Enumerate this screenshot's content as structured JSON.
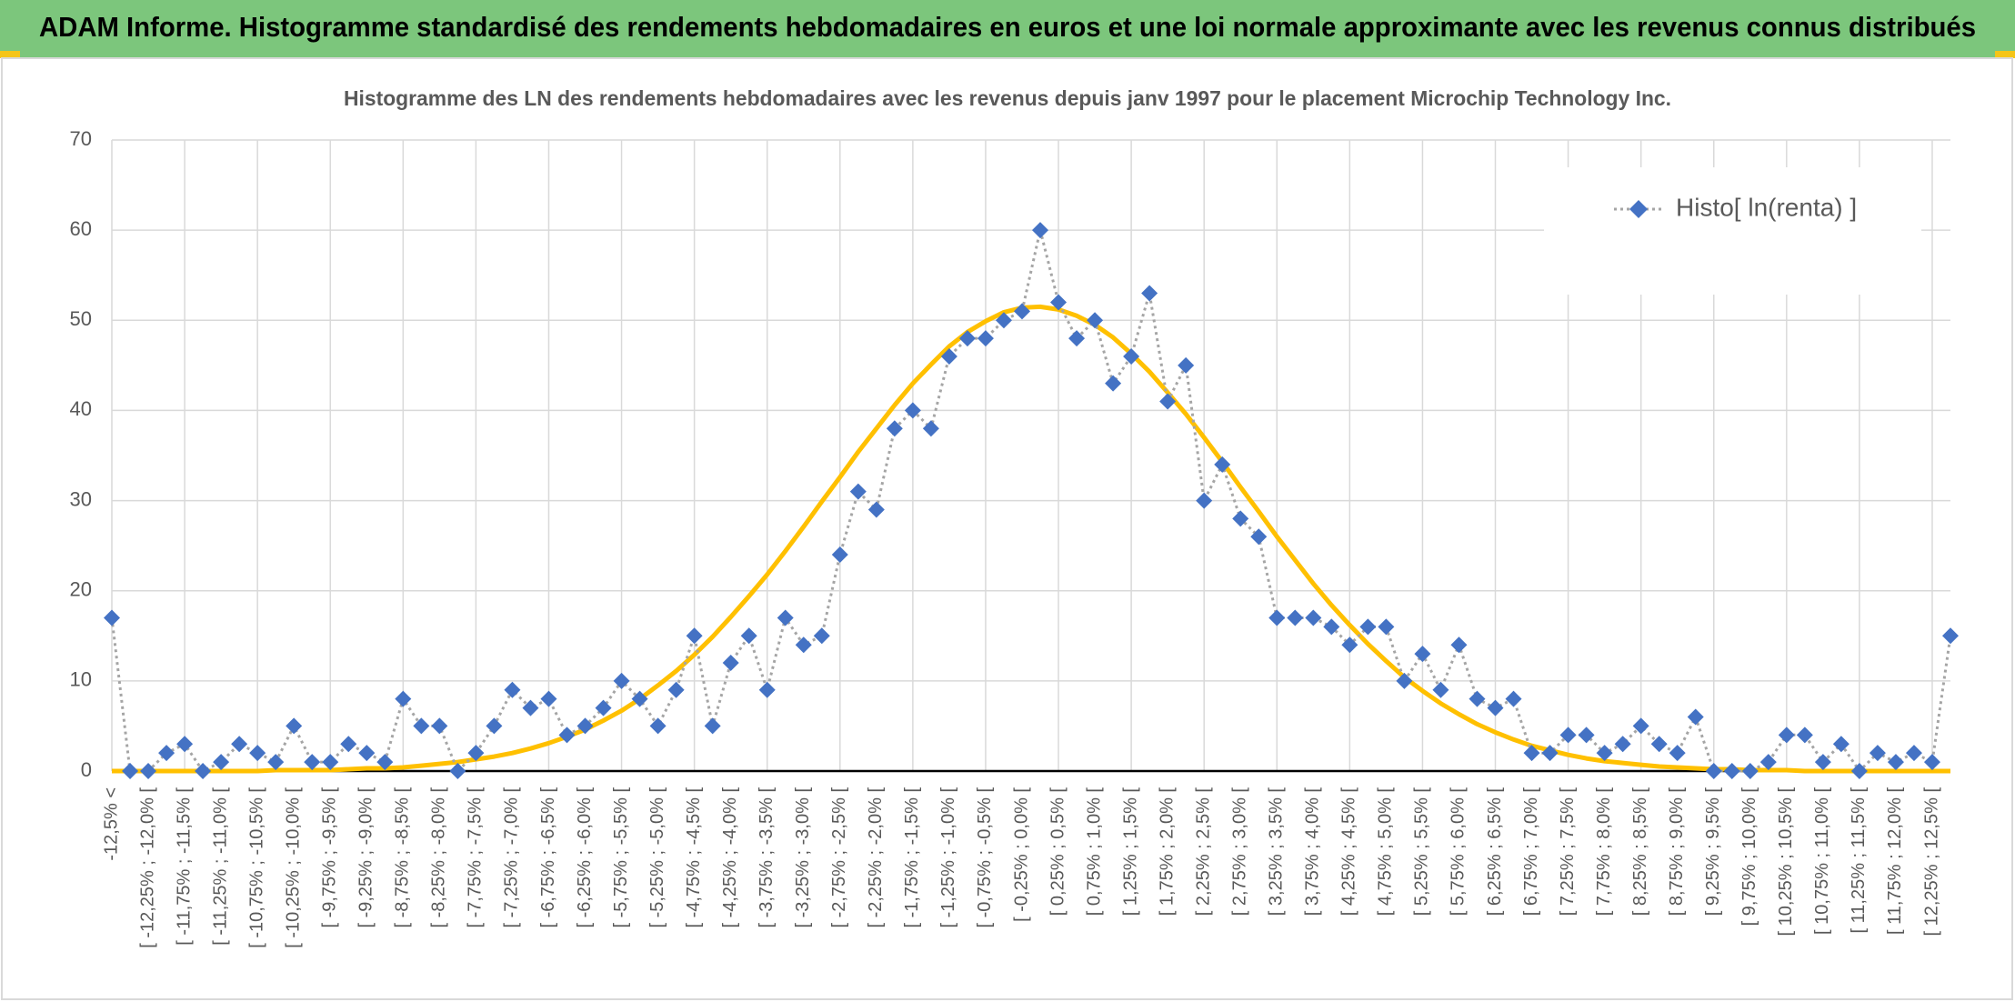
{
  "chart_data": {
    "type": "line",
    "title": "ADAM Informe. Histogramme standardisé des rendements hebdomadaires en euros et une loi normale approximante avec les revenus connus distribués",
    "subtitle": "Histogramme des LN des rendements hebdomadaires avec les revenus depuis janv 1997 pour le placement Microchip Technology Inc.",
    "categories": [
      "-12,5% <",
      null,
      "[ -12,25% ; -12,0% [",
      null,
      "[ -11,75% ; -11,5% [",
      null,
      "[ -11,25% ; -11,0% [",
      null,
      "[ -10,75% ; -10,5% [",
      null,
      "[ -10,25% ; -10,0% [",
      null,
      "[ -9,75% ; -9,5% [",
      null,
      "[ -9,25% ; -9,0% [",
      null,
      "[ -8,75% ; -8,5% [",
      null,
      "[ -8,25% ; -8,0% [",
      null,
      "[ -7,75% ; -7,5% [",
      null,
      "[ -7,25% ; -7,0% [",
      null,
      "[ -6,75% ; -6,5% [",
      null,
      "[ -6,25% ; -6,0% [",
      null,
      "[ -5,75% ; -5,5% [",
      null,
      "[ -5,25% ; -5,0% [",
      null,
      "[ -4,75% ; -4,5% [",
      null,
      "[ -4,25% ; -4,0% [",
      null,
      "[ -3,75% ; -3,5% [",
      null,
      "[ -3,25% ; -3,0% [",
      null,
      "[ -2,75% ; -2,5% [",
      null,
      "[ -2,25% ; -2,0% [",
      null,
      "[ -1,75% ; -1,5% [",
      null,
      "[ -1,25% ; -1,0% [",
      null,
      "[ -0,75% ; -0,5% [",
      null,
      "[ -0,25% ; 0,0% [",
      null,
      "[ 0,25% ; 0,5% [",
      null,
      "[ 0,75% ; 1,0% [",
      null,
      "[ 1,25% ; 1,5% [",
      null,
      "[ 1,75% ; 2,0% [",
      null,
      "[ 2,25% ; 2,5% [",
      null,
      "[ 2,75% ; 3,0% [",
      null,
      "[ 3,25% ; 3,5% [",
      null,
      "[ 3,75% ; 4,0% [",
      null,
      "[ 4,25% ; 4,5% [",
      null,
      "[ 4,75% ; 5,0% [",
      null,
      "[ 5,25% ; 5,5% [",
      null,
      "[ 5,75% ; 6,0% [",
      null,
      "[ 6,25% ; 6,5% [",
      null,
      "[ 6,75% ; 7,0% [",
      null,
      "[ 7,25% ; 7,5% [",
      null,
      "[ 7,75% ; 8,0% [",
      null,
      "[ 8,25% ; 8,5% [",
      null,
      "[ 8,75% ; 9,0% [",
      null,
      "[ 9,25% ; 9,5% [",
      null,
      "[ 9,75% ; 10,0% [",
      null,
      "[ 10,25% ; 10,5% [",
      null,
      "[ 10,75% ; 11,0% [",
      null,
      "[ 11,25% ; 11,5% [",
      null,
      "[ 11,75% ; 12,0% [",
      null,
      "[ 12,25% ; 12,5% [",
      null
    ],
    "series": [
      {
        "name": "Histo[ ln(renta) ]",
        "color": "#4472c4",
        "line_color": "#a5a5a5",
        "marker": "diamond",
        "values": [
          17,
          0,
          0,
          2,
          3,
          0,
          1,
          3,
          2,
          1,
          5,
          1,
          1,
          3,
          2,
          1,
          8,
          5,
          5,
          0,
          2,
          5,
          9,
          7,
          8,
          4,
          5,
          7,
          10,
          8,
          5,
          9,
          15,
          5,
          12,
          15,
          9,
          17,
          14,
          15,
          24,
          31,
          29,
          38,
          40,
          38,
          46,
          48,
          48,
          50,
          51,
          60,
          52,
          48,
          50,
          43,
          46,
          53,
          41,
          45,
          30,
          34,
          28,
          26,
          17,
          17,
          17,
          16,
          14,
          16,
          16,
          10,
          13,
          9,
          14,
          8,
          7,
          8,
          2,
          2,
          4,
          4,
          2,
          3,
          5,
          3,
          2,
          6,
          0,
          0,
          0,
          1,
          4,
          4,
          1,
          3,
          0,
          2,
          1,
          2,
          1,
          15
        ]
      },
      {
        "color": "#ffc000",
        "marker": "none",
        "values": [
          0,
          0,
          0,
          0,
          0,
          0,
          0,
          0,
          0,
          0.1,
          0.1,
          0.1,
          0.1,
          0.2,
          0.3,
          0.3,
          0.4,
          0.6,
          0.8,
          1.0,
          1.3,
          1.6,
          2.0,
          2.5,
          3.1,
          3.8,
          4.6,
          5.6,
          6.7,
          8.0,
          9.5,
          11.1,
          12.9,
          14.9,
          17.1,
          19.4,
          21.8,
          24.4,
          27.1,
          29.9,
          32.6,
          35.4,
          38.0,
          40.6,
          43.0,
          45.1,
          47.1,
          48.7,
          49.9,
          50.9,
          51.4,
          51.5,
          51.2,
          50.5,
          49.5,
          48.1,
          46.3,
          44.3,
          42.0,
          39.6,
          37.0,
          34.3,
          31.5,
          28.8,
          26.0,
          23.4,
          20.8,
          18.4,
          16.2,
          14.1,
          12.2,
          10.4,
          8.9,
          7.5,
          6.3,
          5.2,
          4.3,
          3.5,
          2.8,
          2.3,
          1.8,
          1.4,
          1.1,
          0.9,
          0.7,
          0.5,
          0.4,
          0.3,
          0.2,
          0.2,
          0.1,
          0.1,
          0.1,
          0,
          0,
          0,
          0,
          0,
          0,
          0,
          0,
          0
        ]
      }
    ],
    "ylim": [
      0,
      70
    ],
    "yticks": [
      0,
      10,
      20,
      30,
      40,
      50,
      60,
      70
    ],
    "grid": true,
    "legend": "upper right"
  }
}
